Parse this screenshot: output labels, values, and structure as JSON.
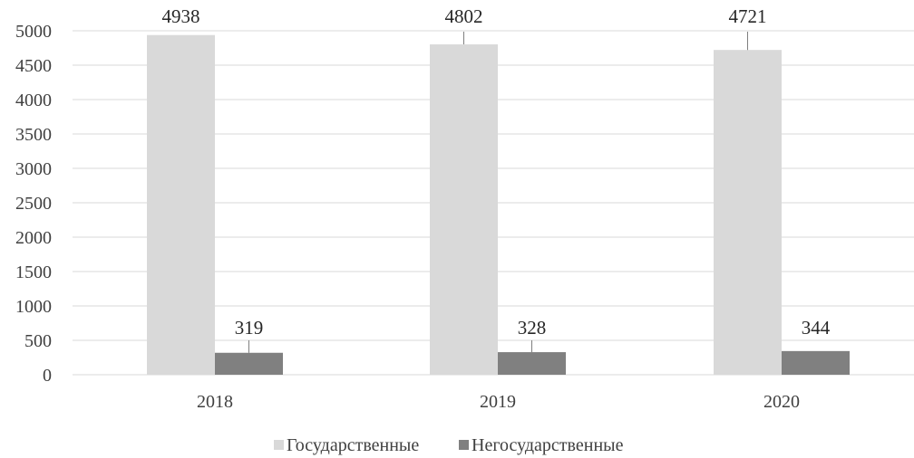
{
  "chart_data": {
    "type": "bar",
    "categories": [
      "2018",
      "2019",
      "2020"
    ],
    "series": [
      {
        "name": "Государственные",
        "values": [
          4938,
          4802,
          4721
        ],
        "color": "#d9d9d9"
      },
      {
        "name": "Негосударственные",
        "values": [
          319,
          328,
          344
        ],
        "color": "#808080"
      }
    ],
    "yticks": [
      "0",
      "500",
      "1000",
      "1500",
      "2000",
      "2500",
      "3000",
      "3500",
      "4000",
      "4500",
      "5000"
    ],
    "ylim": [
      0,
      5000
    ],
    "grid": true,
    "legend_position": "bottom",
    "data_labels": [
      "4938",
      "319",
      "4802",
      "328",
      "4721",
      "344"
    ]
  }
}
